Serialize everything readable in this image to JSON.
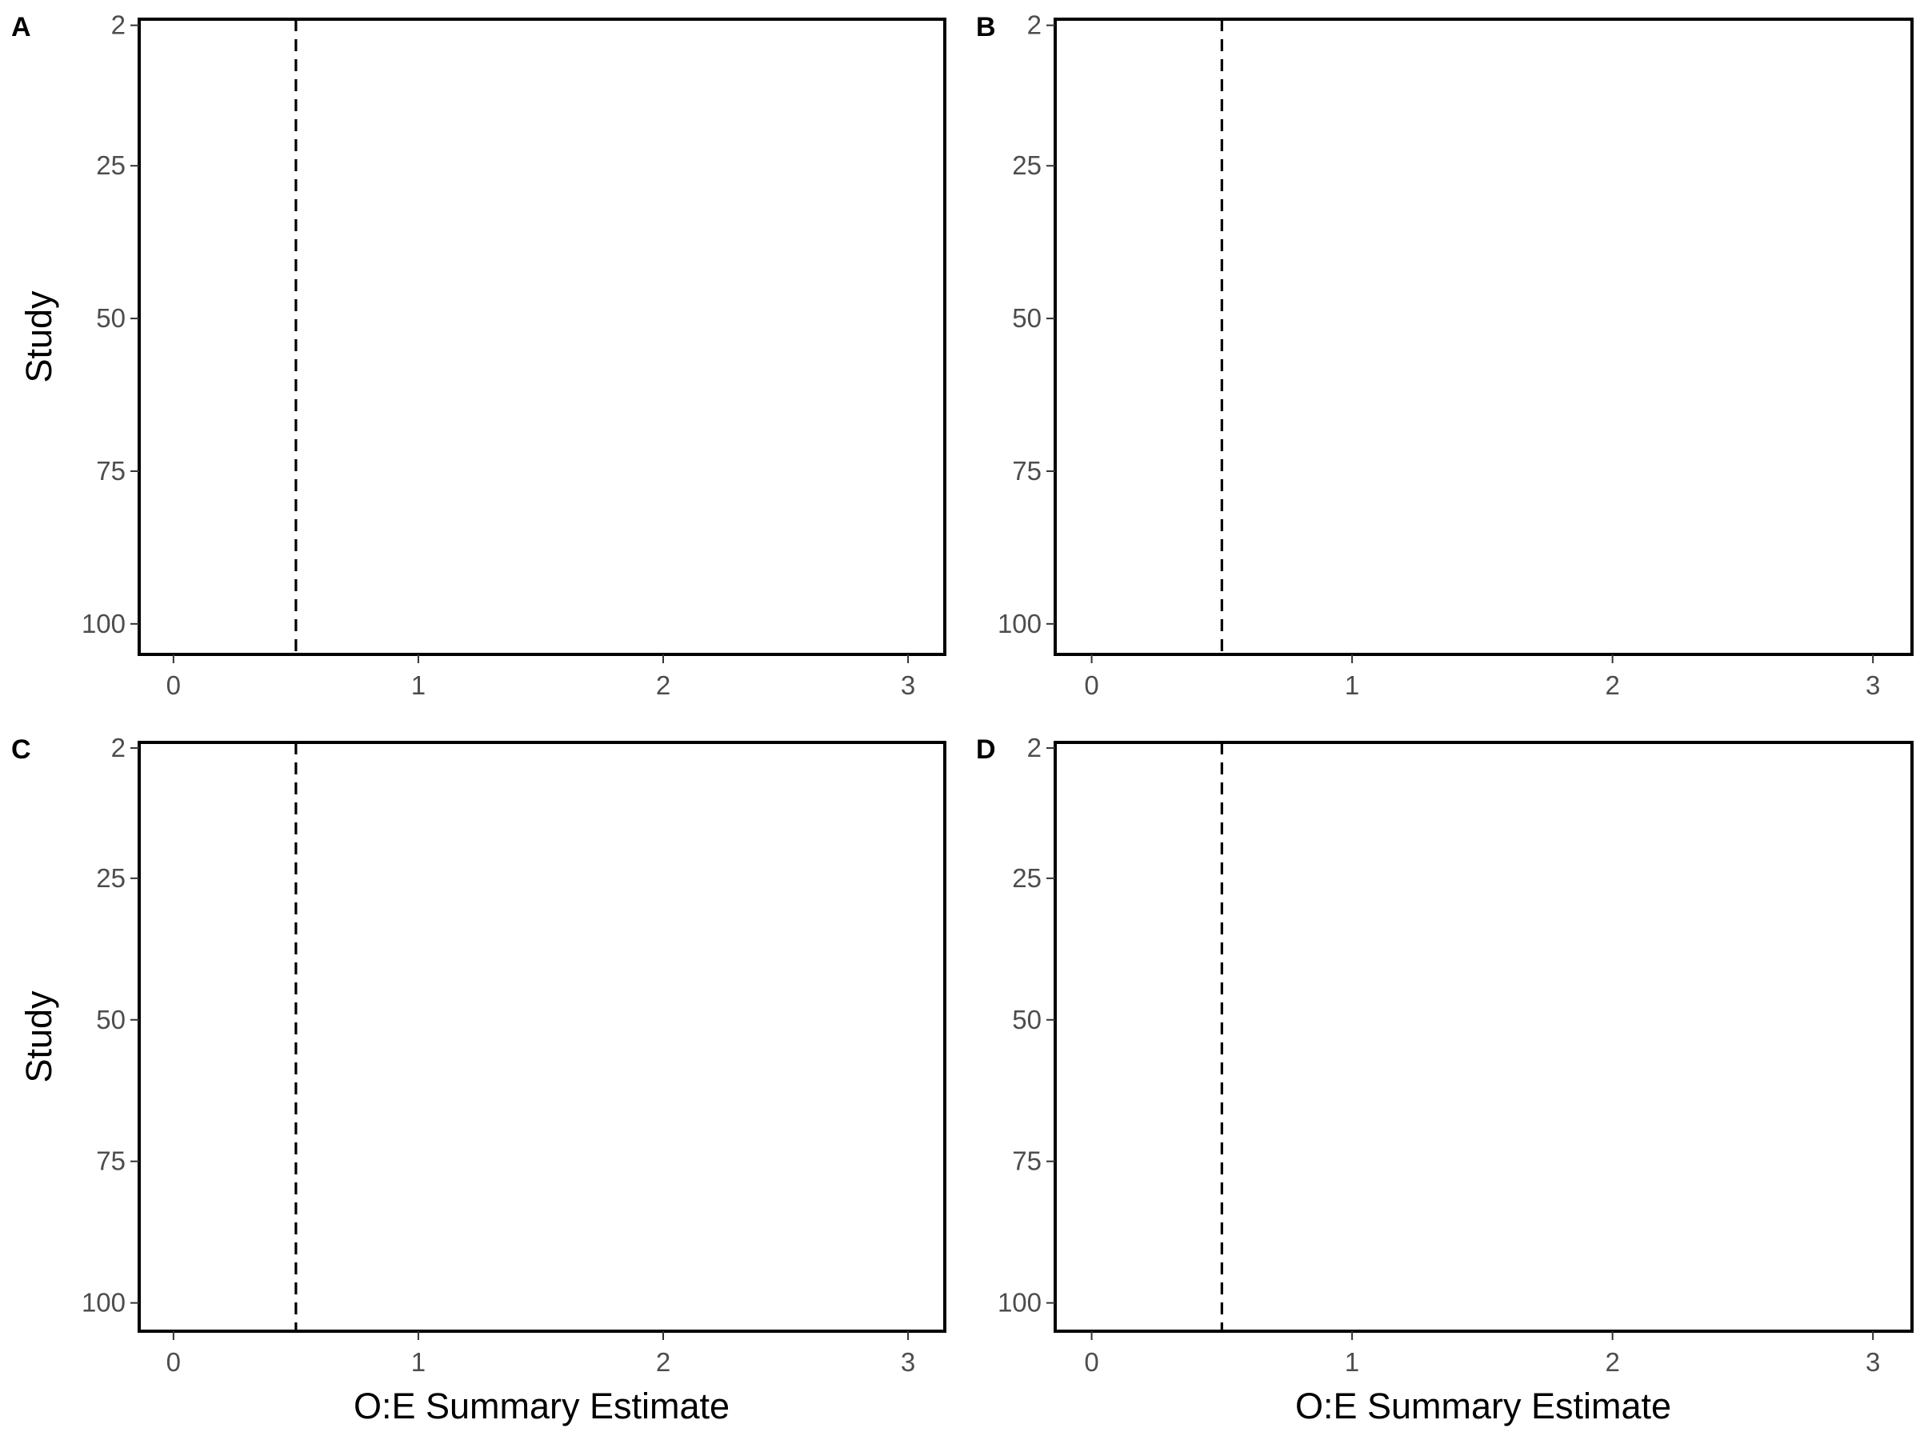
{
  "chart_data": [
    {
      "type": "scatter",
      "panel_label": "A",
      "ylabel": "Study",
      "xlabel": "",
      "xlim": [
        -0.14,
        3.15
      ],
      "ylim": [
        1,
        105
      ],
      "y_reversed": true,
      "xticks": [
        0,
        1,
        2,
        3
      ],
      "yticks": [
        2,
        25,
        50,
        75,
        100
      ],
      "reference_line_x": 0.5,
      "reference_line_style": "dashed",
      "series": [],
      "grid": false
    },
    {
      "type": "scatter",
      "panel_label": "B",
      "ylabel": "",
      "xlabel": "",
      "xlim": [
        -0.14,
        3.15
      ],
      "ylim": [
        1,
        105
      ],
      "y_reversed": true,
      "xticks": [
        0,
        1,
        2,
        3
      ],
      "yticks": [
        2,
        25,
        50,
        75,
        100
      ],
      "reference_line_x": 0.5,
      "reference_line_style": "dashed",
      "series": [],
      "grid": false
    },
    {
      "type": "scatter",
      "panel_label": "C",
      "ylabel": "Study",
      "xlabel": "O:E Summary Estimate",
      "xlim": [
        -0.14,
        3.15
      ],
      "ylim": [
        1,
        105
      ],
      "y_reversed": true,
      "xticks": [
        0,
        1,
        2,
        3
      ],
      "yticks": [
        2,
        25,
        50,
        75,
        100
      ],
      "reference_line_x": 0.5,
      "reference_line_style": "dashed",
      "series": [],
      "grid": false
    },
    {
      "type": "scatter",
      "panel_label": "D",
      "ylabel": "",
      "xlabel": "O:E Summary Estimate",
      "xlim": [
        -0.14,
        3.15
      ],
      "ylim": [
        1,
        105
      ],
      "y_reversed": true,
      "xticks": [
        0,
        1,
        2,
        3
      ],
      "yticks": [
        2,
        25,
        50,
        75,
        100
      ],
      "reference_line_x": 0.5,
      "reference_line_style": "dashed",
      "series": [],
      "grid": false
    }
  ]
}
